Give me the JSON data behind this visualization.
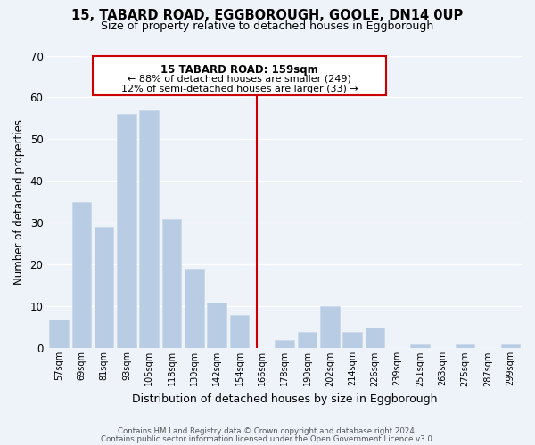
{
  "title": "15, TABARD ROAD, EGGBOROUGH, GOOLE, DN14 0UP",
  "subtitle": "Size of property relative to detached houses in Eggborough",
  "xlabel": "Distribution of detached houses by size in Eggborough",
  "ylabel": "Number of detached properties",
  "bar_labels": [
    "57sqm",
    "69sqm",
    "81sqm",
    "93sqm",
    "105sqm",
    "118sqm",
    "130sqm",
    "142sqm",
    "154sqm",
    "166sqm",
    "178sqm",
    "190sqm",
    "202sqm",
    "214sqm",
    "226sqm",
    "239sqm",
    "251sqm",
    "263sqm",
    "275sqm",
    "287sqm",
    "299sqm"
  ],
  "bar_values": [
    7,
    35,
    29,
    56,
    57,
    31,
    19,
    11,
    8,
    0,
    2,
    4,
    10,
    4,
    5,
    0,
    1,
    0,
    1,
    0,
    1
  ],
  "bar_color": "#b8cce4",
  "bar_edge_color": "#c8d8ea",
  "vline_x": 8.77,
  "vline_color": "#cc0000",
  "annotation_title": "15 TABARD ROAD: 159sqm",
  "annotation_line1": "← 88% of detached houses are smaller (249)",
  "annotation_line2": "12% of semi-detached houses are larger (33) →",
  "annotation_box_color": "#ffffff",
  "annotation_box_edge": "#cc0000",
  "ylim": [
    0,
    70
  ],
  "yticks": [
    0,
    10,
    20,
    30,
    40,
    50,
    60,
    70
  ],
  "footer1": "Contains HM Land Registry data © Crown copyright and database right 2024.",
  "footer2": "Contains public sector information licensed under the Open Government Licence v3.0.",
  "bg_color": "#eef2f9",
  "grid_color": "#ffffff"
}
